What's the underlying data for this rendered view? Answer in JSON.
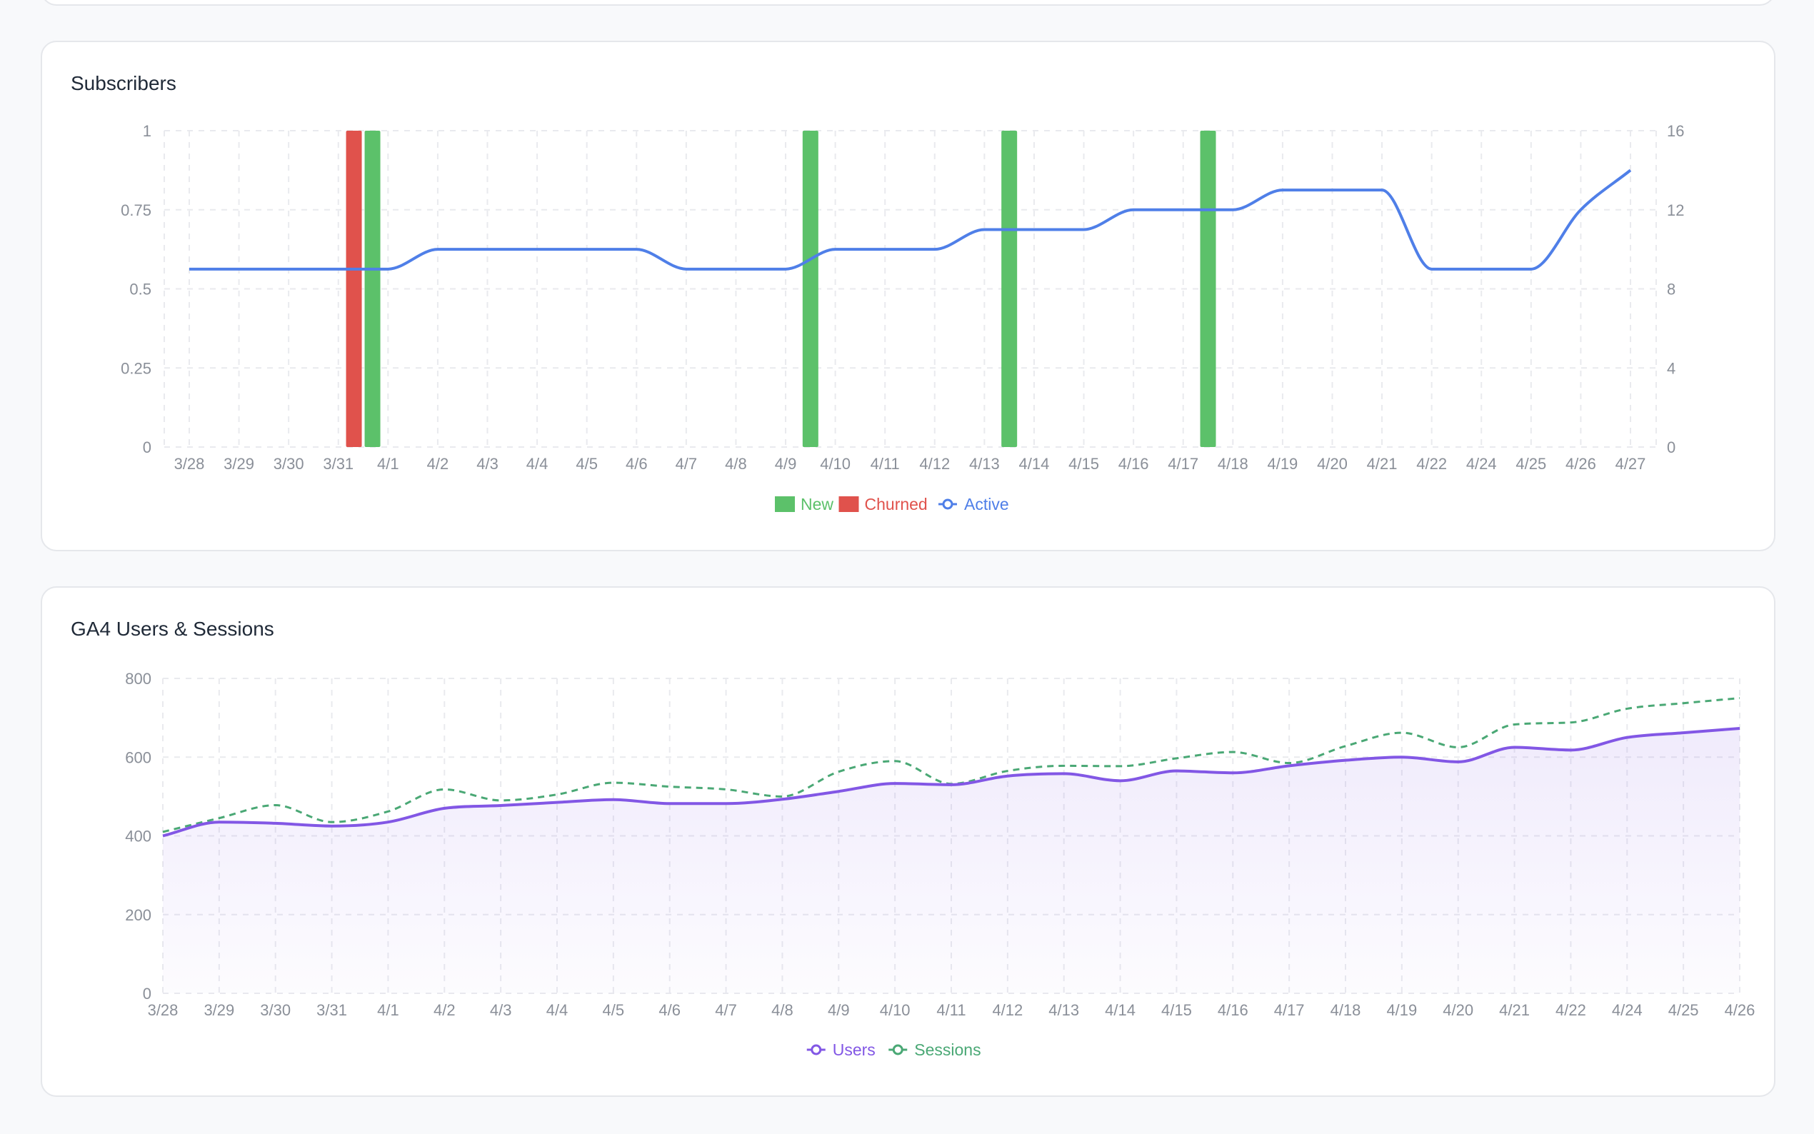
{
  "colors": {
    "new": "#5cc16a",
    "churned": "#e0524c",
    "active": "#4f7fe8",
    "users": "#8257e5",
    "sessions": "#4aa875",
    "grid": "#e9eaee",
    "tick": "#8a8f98"
  },
  "subscribers_card": {
    "title": "Subscribers"
  },
  "ga4_card": {
    "title": "GA4 Users & Sessions"
  },
  "chart_data": [
    {
      "type": "bar",
      "title": "Subscribers",
      "categories": [
        "3/28",
        "3/29",
        "3/30",
        "3/31",
        "4/1",
        "4/2",
        "4/3",
        "4/4",
        "4/5",
        "4/6",
        "4/7",
        "4/8",
        "4/9",
        "4/10",
        "4/11",
        "4/12",
        "4/13",
        "4/14",
        "4/15",
        "4/16",
        "4/17",
        "4/18",
        "4/19",
        "4/20",
        "4/21",
        "4/22",
        "4/24",
        "4/25",
        "4/26",
        "4/27"
      ],
      "y_left": {
        "lim": [
          0,
          1
        ],
        "ticks": [
          "0",
          "0.25",
          "0.5",
          "0.75",
          "1"
        ]
      },
      "y_right": {
        "lim": [
          0,
          16
        ],
        "ticks": [
          "0",
          "4",
          "8",
          "12",
          "16"
        ]
      },
      "series": [
        {
          "name": "New",
          "kind": "bar",
          "axis": "left",
          "color": "#5cc16a",
          "values": [
            0,
            0,
            0,
            1,
            0,
            0,
            0,
            0,
            0,
            0,
            0,
            0,
            1,
            0,
            0,
            0,
            1,
            0,
            0,
            0,
            1,
            0,
            0,
            0,
            0,
            0,
            0,
            0,
            0,
            0
          ]
        },
        {
          "name": "Churned",
          "kind": "bar",
          "axis": "left",
          "color": "#e0524c",
          "values": [
            0,
            0,
            0,
            1,
            0,
            0,
            0,
            0,
            0,
            0,
            0,
            0,
            0,
            0,
            0,
            0,
            0,
            0,
            0,
            0,
            0,
            0,
            0,
            0,
            0,
            0,
            0,
            0,
            0,
            0
          ]
        },
        {
          "name": "Active",
          "kind": "line",
          "axis": "right",
          "color": "#4f7fe8",
          "values": [
            9,
            9,
            9,
            9,
            9,
            10,
            10,
            10,
            10,
            10,
            9,
            9,
            9,
            10,
            10,
            10,
            11,
            11,
            11,
            12,
            12,
            12,
            13,
            13,
            13,
            9,
            9,
            9,
            12,
            14
          ]
        }
      ],
      "grid": true,
      "legend": {
        "position": "bottom-center",
        "items": [
          "New",
          "Churned",
          "Active"
        ]
      }
    },
    {
      "type": "area",
      "title": "GA4 Users & Sessions",
      "categories": [
        "3/28",
        "3/29",
        "3/30",
        "3/31",
        "4/1",
        "4/2",
        "4/3",
        "4/4",
        "4/5",
        "4/6",
        "4/7",
        "4/8",
        "4/9",
        "4/10",
        "4/11",
        "4/12",
        "4/13",
        "4/14",
        "4/15",
        "4/16",
        "4/17",
        "4/18",
        "4/19",
        "4/20",
        "4/21",
        "4/22",
        "4/24",
        "4/25",
        "4/26"
      ],
      "y": {
        "lim": [
          0,
          800
        ],
        "ticks": [
          "0",
          "200",
          "400",
          "600",
          "800"
        ]
      },
      "series": [
        {
          "name": "Users",
          "kind": "area",
          "color": "#8257e5",
          "values": [
            400,
            435,
            432,
            425,
            435,
            470,
            477,
            485,
            492,
            482,
            482,
            493,
            513,
            533,
            530,
            552,
            558,
            540,
            565,
            560,
            578,
            592,
            600,
            588,
            625,
            618,
            650,
            662,
            673
          ]
        },
        {
          "name": "Sessions",
          "kind": "dashed-line",
          "color": "#4aa875",
          "values": [
            410,
            445,
            478,
            435,
            462,
            518,
            490,
            505,
            535,
            525,
            518,
            500,
            563,
            590,
            532,
            565,
            578,
            577,
            597,
            613,
            585,
            628,
            662,
            625,
            683,
            688,
            723,
            737,
            750
          ]
        }
      ],
      "grid": true,
      "legend": {
        "position": "bottom-center",
        "items": [
          "Users",
          "Sessions"
        ]
      }
    }
  ]
}
